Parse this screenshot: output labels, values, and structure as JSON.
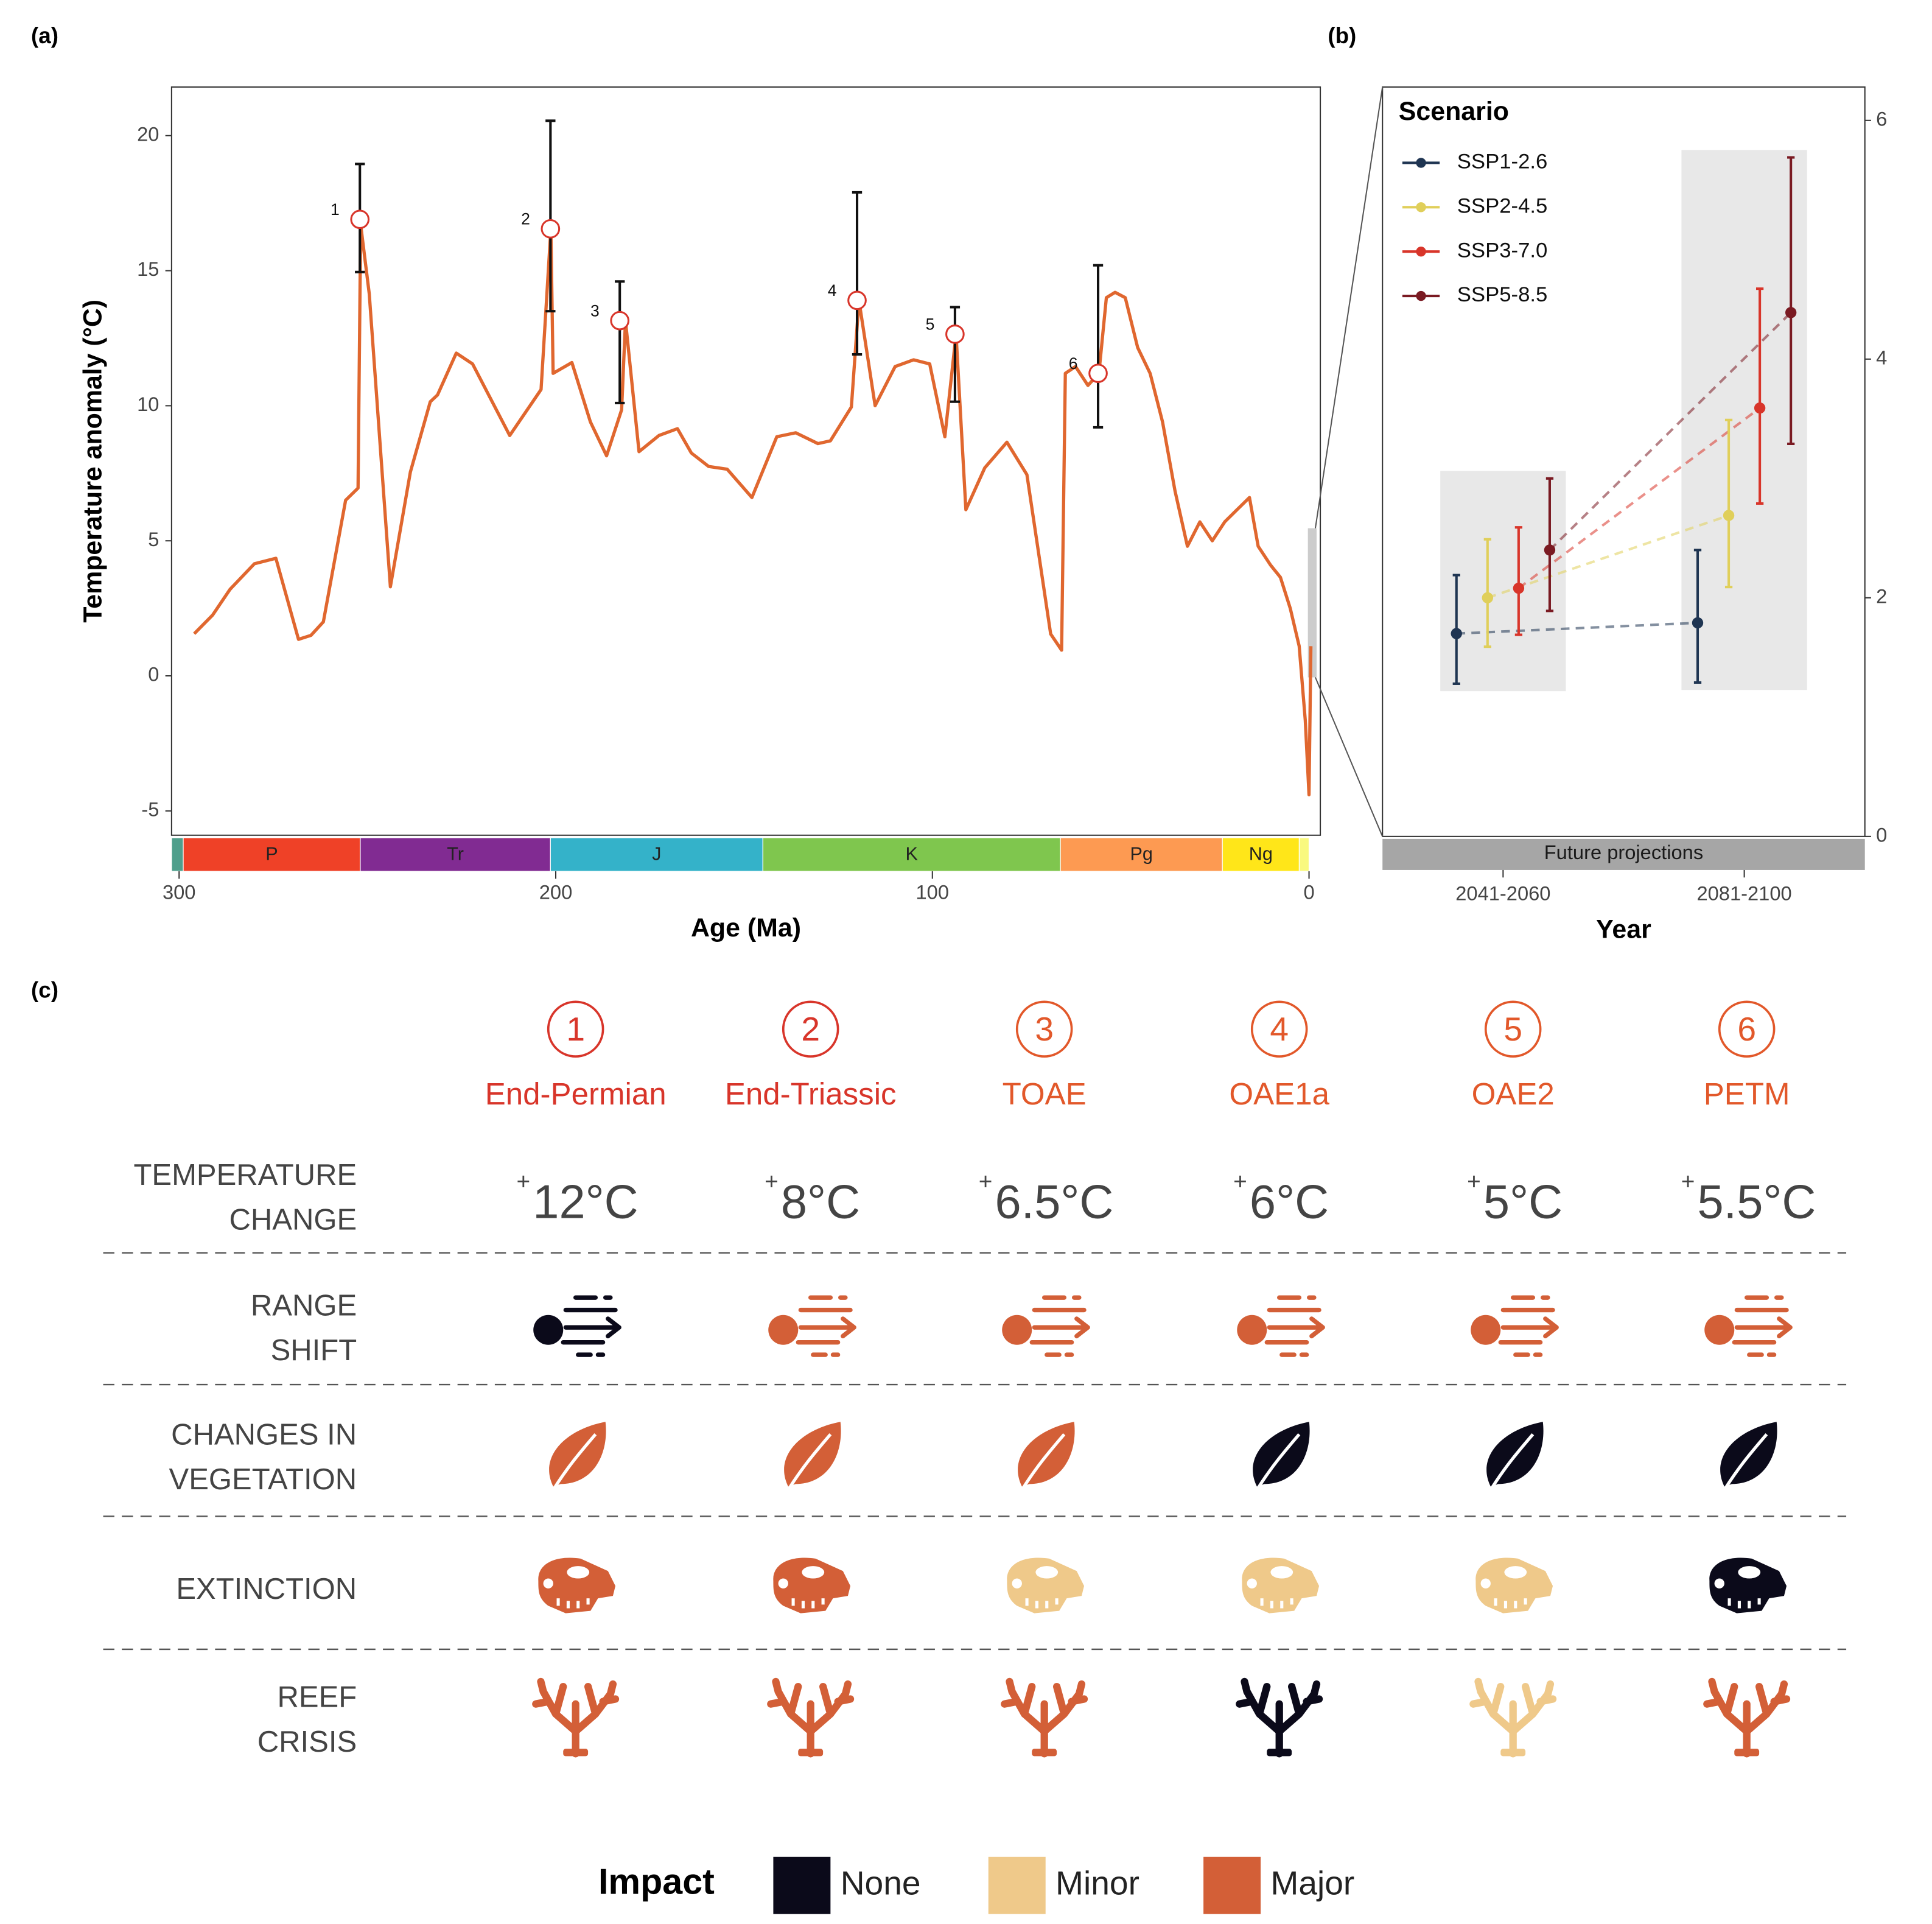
{
  "panel_labels": [
    "(a)",
    "(b)",
    "(c)"
  ],
  "chart_data": [
    {
      "type": "line",
      "xlabel": "Age (Ma)",
      "ylabel": "Temperature anomaly (°C)",
      "x": [
        296,
        291.1,
        286.5,
        280,
        274.3,
        268.3,
        265,
        261.7,
        255.8,
        252.5,
        251.8,
        249.5,
        243.9,
        238.6,
        233.3,
        231.4,
        226.4,
        222.1,
        212.2,
        203.9,
        201.3,
        200.7,
        195.7,
        190.8,
        186.5,
        182.5,
        181.5,
        177.9,
        172.6,
        167.7,
        164,
        159.4,
        154.5,
        147.9,
        141.3,
        136.3,
        130.4,
        127.1,
        121.5,
        119.5,
        115.2,
        109.9,
        105,
        100.7,
        96.7,
        93.7,
        91.1,
        86.1,
        80.2,
        74.9,
        68.6,
        65.7,
        64.7,
        62,
        58.7,
        55.8,
        53.8,
        51.5,
        48.8,
        45.5,
        42.2,
        38.9,
        35.6,
        32.3,
        29,
        25.7,
        22.4,
        19.1,
        15.8,
        13.5,
        10.2,
        7.6,
        5,
        2.6,
        1,
        0,
        -0.5
      ],
      "values": [
        1.56,
        2.25,
        3.2,
        4.15,
        4.35,
        1.35,
        1.5,
        2.0,
        6.5,
        6.95,
        16.7,
        14.15,
        3.3,
        7.55,
        10.15,
        10.4,
        11.95,
        11.55,
        8.9,
        10.6,
        16.55,
        11.2,
        11.6,
        9.4,
        8.15,
        9.85,
        13.15,
        8.3,
        8.9,
        9.15,
        8.25,
        7.75,
        7.65,
        6.6,
        8.85,
        9.0,
        8.6,
        8.7,
        9.95,
        13.9,
        10.0,
        11.45,
        11.7,
        11.55,
        8.85,
        12.65,
        6.15,
        7.7,
        8.65,
        7.45,
        1.55,
        0.95,
        11.2,
        11.45,
        10.75,
        11.2,
        14.0,
        14.2,
        14.0,
        12.15,
        11.2,
        9.4,
        6.85,
        4.8,
        5.7,
        5.0,
        5.7,
        6.15,
        6.6,
        4.8,
        4.1,
        3.65,
        2.5,
        1.1,
        -1.65,
        -4.4,
        1.1
      ],
      "color": "#e0672f",
      "xlim": [
        302,
        -3
      ],
      "ylim": [
        -5.9,
        21.8
      ],
      "xticks": [
        300,
        200,
        100,
        0
      ],
      "yticks": [
        -5,
        0,
        5,
        10,
        15,
        20
      ],
      "events": {
        "labels": [
          "1",
          "2",
          "3",
          "4",
          "5",
          "6"
        ],
        "x": [
          252,
          201.4,
          183,
          120,
          94,
          56
        ],
        "values": [
          16.9,
          16.55,
          13.15,
          13.9,
          12.65,
          11.2
        ],
        "lower": [
          14.95,
          13.5,
          10.1,
          11.9,
          10.15,
          9.2
        ],
        "upper": [
          18.95,
          20.55,
          14.6,
          17.9,
          13.65,
          15.2
        ]
      },
      "periods": {
        "names": [
          null,
          "P",
          "Tr",
          "J",
          "K",
          "Pg",
          "Ng",
          null
        ],
        "bounds": [
          302,
          298.9,
          251.9,
          201.4,
          145,
          66,
          23,
          2.6,
          0
        ],
        "colors": [
          "#4f9f8c",
          "#ef4127",
          "#812b92",
          "#34b2c9",
          "#7fc64e",
          "#fd9a52",
          "#ffe619",
          "#f9f97f"
        ]
      }
    },
    {
      "type": "errorbar",
      "xlabel": "Year",
      "strip": "Future projections",
      "legend_title": "Scenario",
      "categories": [
        "2041-2060",
        "2081-2100"
      ],
      "series": [
        {
          "name": "SSP1-2.6",
          "color": "#1f3552",
          "values": [
            1.7,
            1.79
          ],
          "lower": [
            1.28,
            1.29
          ],
          "upper": [
            2.19,
            2.4
          ]
        },
        {
          "name": "SSP2-4.5",
          "color": "#e0cf5a",
          "values": [
            2.0,
            2.69
          ],
          "lower": [
            1.59,
            2.09
          ],
          "upper": [
            2.49,
            3.49
          ]
        },
        {
          "name": "SSP3-7.0",
          "color": "#d8352a",
          "values": [
            2.08,
            3.59
          ],
          "lower": [
            1.69,
            2.79
          ],
          "upper": [
            2.59,
            4.59
          ]
        },
        {
          "name": "SSP5-8.5",
          "color": "#7a1a22",
          "values": [
            2.4,
            4.39
          ],
          "lower": [
            1.89,
            3.29
          ],
          "upper": [
            3.0,
            5.69
          ]
        }
      ],
      "ylim": [
        0,
        6.28
      ],
      "yticks": [
        0,
        2,
        4,
        6
      ],
      "y_axis_side": "right"
    }
  ],
  "impact_table": {
    "events": [
      {
        "number": "1",
        "name": "End-Permian",
        "color": "#d8352a"
      },
      {
        "number": "2",
        "name": "End-Triassic",
        "color": "#d8352a"
      },
      {
        "number": "3",
        "name": "TOAE",
        "color": "#e2582a"
      },
      {
        "number": "4",
        "name": "OAE1a",
        "color": "#e2582a"
      },
      {
        "number": "5",
        "name": "OAE2",
        "color": "#e2582a"
      },
      {
        "number": "6",
        "name": "PETM",
        "color": "#e2582a"
      }
    ],
    "temperature": {
      "label": [
        "TEMPERATURE",
        "CHANGE"
      ],
      "cells": [
        {
          "sign": "+",
          "value": "12°C"
        },
        {
          "sign": "+",
          "value": "8°C"
        },
        {
          "sign": "+",
          "value": "6.5°C"
        },
        {
          "sign": "+",
          "value": "6°C"
        },
        {
          "sign": "+",
          "value": "5°C"
        },
        {
          "sign": "+",
          "value": "5.5°C"
        }
      ]
    },
    "rows": [
      {
        "label": [
          "RANGE",
          "SHIFT"
        ],
        "cells": [
          "None",
          "Major",
          "Major",
          "Major",
          "Major",
          "Major"
        ]
      },
      {
        "label": [
          "CHANGES IN",
          "VEGETATION"
        ],
        "cells": [
          "Major",
          "Major",
          "Major",
          "None",
          "None",
          "None"
        ]
      },
      {
        "label": [
          "EXTINCTION"
        ],
        "cells": [
          "Major",
          "Major",
          "Minor",
          "Minor",
          "Minor",
          "None"
        ]
      },
      {
        "label": [
          "REEF",
          "CRISIS"
        ],
        "cells": [
          "Major",
          "Major",
          "Major",
          "None",
          "Minor",
          "Major"
        ]
      }
    ],
    "legend": {
      "title": "Impact",
      "levels": [
        {
          "name": "None",
          "color": "#0b0a1a"
        },
        {
          "name": "Minor",
          "color": "#efc98a"
        },
        {
          "name": "Major",
          "color": "#d35f37"
        }
      ]
    }
  }
}
